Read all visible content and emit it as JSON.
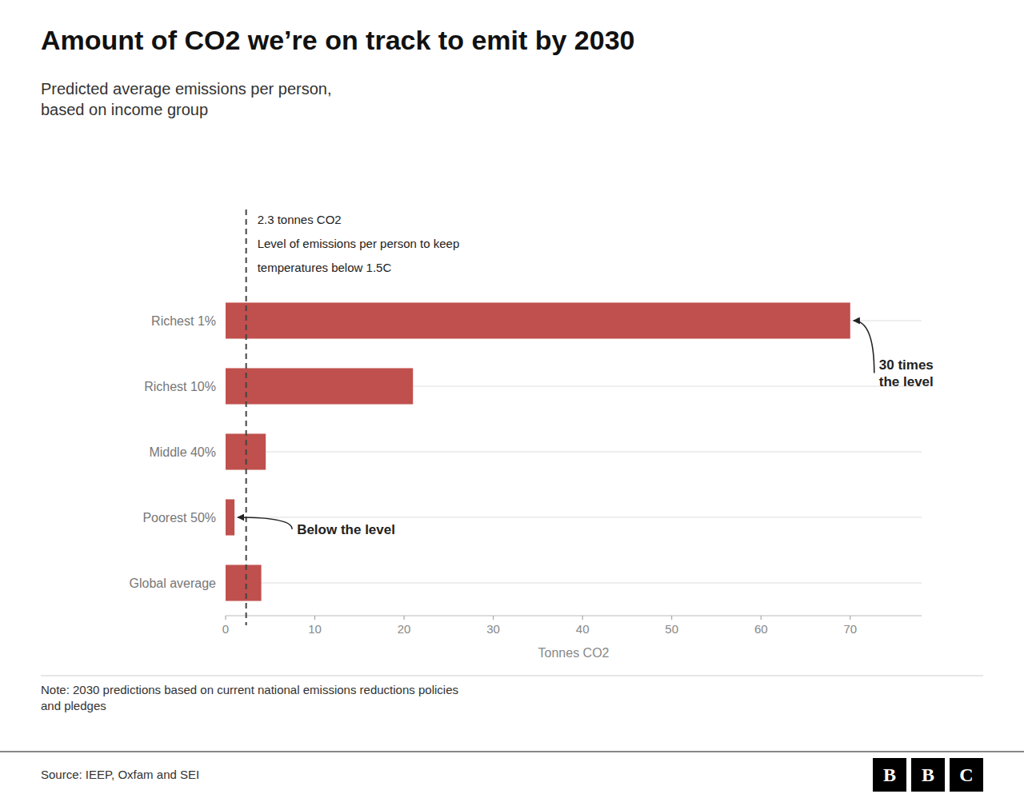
{
  "chart_data": {
    "type": "bar",
    "orientation": "horizontal",
    "title": "Amount of CO2 we’re on track to emit by 2030",
    "subtitle": "Predicted average emissions per person,\nbased on income group",
    "categories": [
      "Richest 1%",
      "Richest 10%",
      "Middle 40%",
      "Poorest 50%",
      "Global average"
    ],
    "values": [
      70,
      21,
      4.5,
      1.0,
      4.0
    ],
    "color": "#c0504d",
    "xlabel": "Tonnes CO2",
    "xlim": [
      0,
      78
    ],
    "xticks": [
      0,
      10,
      20,
      30,
      40,
      50,
      60,
      70
    ],
    "grid": true,
    "reference_line": {
      "value": 2.3,
      "labels": [
        "2.3 tonnes CO2",
        "Level of emissions per person to keep",
        "temperatures below 1.5C"
      ]
    },
    "annotations": [
      {
        "text": "30 times\nthe level",
        "category": "Richest 1%"
      },
      {
        "text": "Below the level",
        "category": "Poorest 50%"
      }
    ],
    "note": "Note: 2030 predictions based on current national emissions reductions policies\nand pledges",
    "source": "Source: IEEP, Oxfam and SEI",
    "logo": "BBC"
  }
}
